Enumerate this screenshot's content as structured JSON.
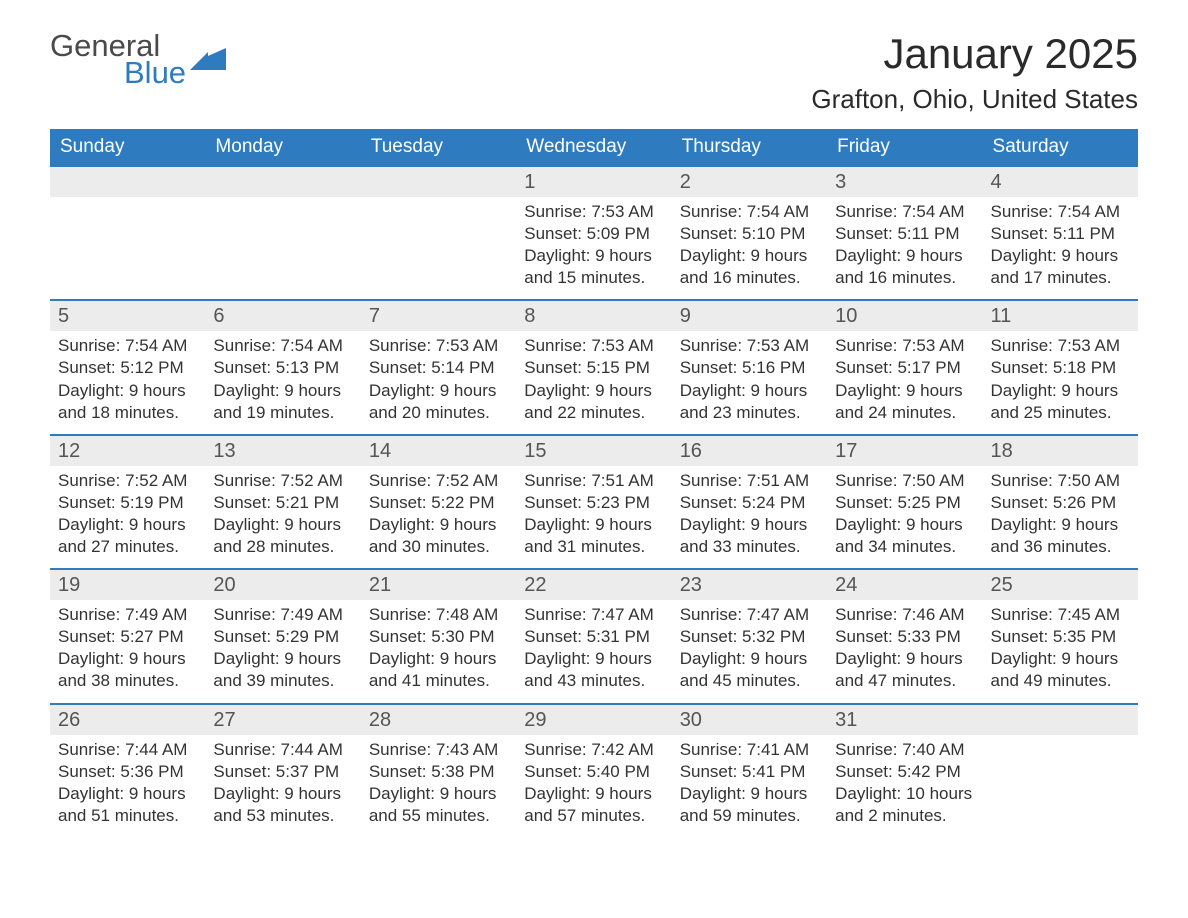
{
  "logo": {
    "word1": "General",
    "word2": "Blue",
    "icon_color": "#2f7bbf"
  },
  "colors": {
    "header_bg": "#2f7bbf",
    "header_text": "#ffffff",
    "row_band": "#ececec",
    "border": "#2f7bbf",
    "body_text": "#333333"
  },
  "title": "January 2025",
  "location": "Grafton, Ohio, United States",
  "day_headers": [
    "Sunday",
    "Monday",
    "Tuesday",
    "Wednesday",
    "Thursday",
    "Friday",
    "Saturday"
  ],
  "weeks": [
    [
      null,
      null,
      null,
      {
        "n": "1",
        "sunrise": "7:53 AM",
        "sunset": "5:09 PM",
        "daylight": "9 hours and 15 minutes."
      },
      {
        "n": "2",
        "sunrise": "7:54 AM",
        "sunset": "5:10 PM",
        "daylight": "9 hours and 16 minutes."
      },
      {
        "n": "3",
        "sunrise": "7:54 AM",
        "sunset": "5:11 PM",
        "daylight": "9 hours and 16 minutes."
      },
      {
        "n": "4",
        "sunrise": "7:54 AM",
        "sunset": "5:11 PM",
        "daylight": "9 hours and 17 minutes."
      }
    ],
    [
      {
        "n": "5",
        "sunrise": "7:54 AM",
        "sunset": "5:12 PM",
        "daylight": "9 hours and 18 minutes."
      },
      {
        "n": "6",
        "sunrise": "7:54 AM",
        "sunset": "5:13 PM",
        "daylight": "9 hours and 19 minutes."
      },
      {
        "n": "7",
        "sunrise": "7:53 AM",
        "sunset": "5:14 PM",
        "daylight": "9 hours and 20 minutes."
      },
      {
        "n": "8",
        "sunrise": "7:53 AM",
        "sunset": "5:15 PM",
        "daylight": "9 hours and 22 minutes."
      },
      {
        "n": "9",
        "sunrise": "7:53 AM",
        "sunset": "5:16 PM",
        "daylight": "9 hours and 23 minutes."
      },
      {
        "n": "10",
        "sunrise": "7:53 AM",
        "sunset": "5:17 PM",
        "daylight": "9 hours and 24 minutes."
      },
      {
        "n": "11",
        "sunrise": "7:53 AM",
        "sunset": "5:18 PM",
        "daylight": "9 hours and 25 minutes."
      }
    ],
    [
      {
        "n": "12",
        "sunrise": "7:52 AM",
        "sunset": "5:19 PM",
        "daylight": "9 hours and 27 minutes."
      },
      {
        "n": "13",
        "sunrise": "7:52 AM",
        "sunset": "5:21 PM",
        "daylight": "9 hours and 28 minutes."
      },
      {
        "n": "14",
        "sunrise": "7:52 AM",
        "sunset": "5:22 PM",
        "daylight": "9 hours and 30 minutes."
      },
      {
        "n": "15",
        "sunrise": "7:51 AM",
        "sunset": "5:23 PM",
        "daylight": "9 hours and 31 minutes."
      },
      {
        "n": "16",
        "sunrise": "7:51 AM",
        "sunset": "5:24 PM",
        "daylight": "9 hours and 33 minutes."
      },
      {
        "n": "17",
        "sunrise": "7:50 AM",
        "sunset": "5:25 PM",
        "daylight": "9 hours and 34 minutes."
      },
      {
        "n": "18",
        "sunrise": "7:50 AM",
        "sunset": "5:26 PM",
        "daylight": "9 hours and 36 minutes."
      }
    ],
    [
      {
        "n": "19",
        "sunrise": "7:49 AM",
        "sunset": "5:27 PM",
        "daylight": "9 hours and 38 minutes."
      },
      {
        "n": "20",
        "sunrise": "7:49 AM",
        "sunset": "5:29 PM",
        "daylight": "9 hours and 39 minutes."
      },
      {
        "n": "21",
        "sunrise": "7:48 AM",
        "sunset": "5:30 PM",
        "daylight": "9 hours and 41 minutes."
      },
      {
        "n": "22",
        "sunrise": "7:47 AM",
        "sunset": "5:31 PM",
        "daylight": "9 hours and 43 minutes."
      },
      {
        "n": "23",
        "sunrise": "7:47 AM",
        "sunset": "5:32 PM",
        "daylight": "9 hours and 45 minutes."
      },
      {
        "n": "24",
        "sunrise": "7:46 AM",
        "sunset": "5:33 PM",
        "daylight": "9 hours and 47 minutes."
      },
      {
        "n": "25",
        "sunrise": "7:45 AM",
        "sunset": "5:35 PM",
        "daylight": "9 hours and 49 minutes."
      }
    ],
    [
      {
        "n": "26",
        "sunrise": "7:44 AM",
        "sunset": "5:36 PM",
        "daylight": "9 hours and 51 minutes."
      },
      {
        "n": "27",
        "sunrise": "7:44 AM",
        "sunset": "5:37 PM",
        "daylight": "9 hours and 53 minutes."
      },
      {
        "n": "28",
        "sunrise": "7:43 AM",
        "sunset": "5:38 PM",
        "daylight": "9 hours and 55 minutes."
      },
      {
        "n": "29",
        "sunrise": "7:42 AM",
        "sunset": "5:40 PM",
        "daylight": "9 hours and 57 minutes."
      },
      {
        "n": "30",
        "sunrise": "7:41 AM",
        "sunset": "5:41 PM",
        "daylight": "9 hours and 59 minutes."
      },
      {
        "n": "31",
        "sunrise": "7:40 AM",
        "sunset": "5:42 PM",
        "daylight": "10 hours and 2 minutes."
      },
      null
    ]
  ],
  "labels": {
    "sunrise": "Sunrise: ",
    "sunset": "Sunset: ",
    "daylight": "Daylight: "
  }
}
